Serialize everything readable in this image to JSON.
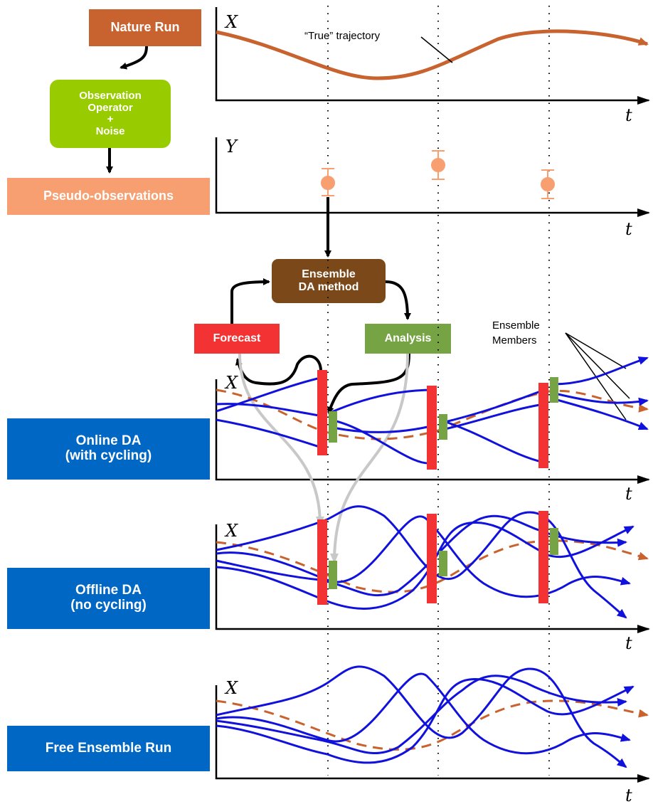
{
  "boxes": {
    "nature_run": "Nature Run",
    "observation_operator": "Observation Operator + Noise",
    "observation_operator_lines": [
      "Observation",
      "Operator",
      "+",
      "Noise"
    ],
    "pseudo_observations": "Pseudo-observations",
    "ensemble_da_lines": [
      "Ensemble",
      "DA method"
    ],
    "forecast": "Forecast",
    "analysis": "Analysis",
    "online_da_lines": [
      "Online DA",
      "(with cycling)"
    ],
    "offline_da_lines": [
      "Offline DA",
      "(no cycling)"
    ],
    "free_ensemble": "Free Ensemble Run"
  },
  "annotations": {
    "true_trajectory": "“True” trajectory",
    "ensemble_members_lines": [
      "Ensemble",
      "Members"
    ]
  },
  "axes": {
    "x_symbol": "X",
    "y_symbol": "Y",
    "t_symbol": "t"
  },
  "colors": {
    "nature_run": "#C8632F",
    "observation_operator": "#99CC00",
    "pseudo_observations": "#F79F71",
    "ensemble_da": "#7A4819",
    "forecast": "#F33333",
    "analysis": "#76A445",
    "da_panels": "#0067C4",
    "ensemble_member": "#1111DD",
    "truth_dashed": "#C8632F",
    "observation_marker": "#F79F71"
  }
}
